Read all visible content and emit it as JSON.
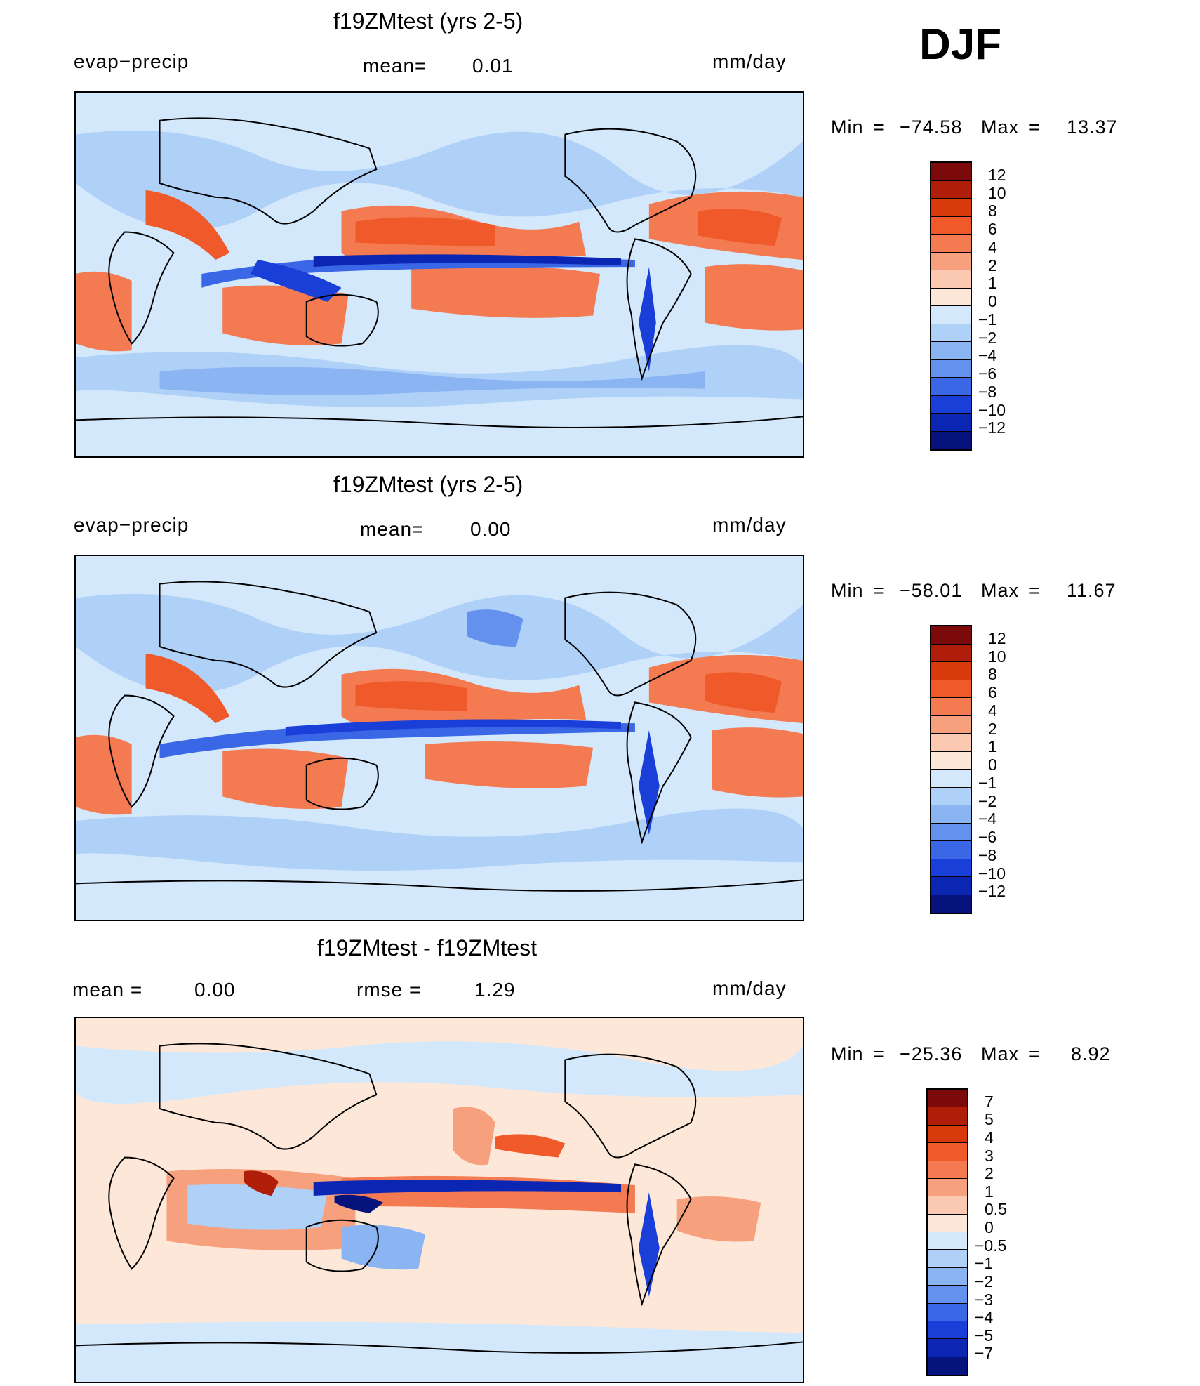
{
  "season": "DJF",
  "panels": [
    {
      "title": "f19ZMtest (yrs 2-5)",
      "left_label": "evap−precip",
      "center_key": "mean=",
      "center_val": "0.01",
      "units": "mm/day",
      "min_label": "Min",
      "min_val": "−74.58",
      "max_label": "Max",
      "max_val": "13.37",
      "levels": [
        "12",
        "10",
        "8",
        "6",
        "4",
        "2",
        "1",
        "0",
        "−1",
        "−2",
        "−4",
        "−6",
        "−8",
        "−10",
        "−12"
      ],
      "colors": [
        "#7d0a0a",
        "#b01e09",
        "#d83a0c",
        "#f0592a",
        "#f47a52",
        "#f7a07e",
        "#fbc9b1",
        "#fde7d8",
        "#d4e8fb",
        "#afd0f7",
        "#8bb5f2",
        "#6491ee",
        "#3a67e6",
        "#1a3fd8",
        "#0b26b3",
        "#07137d"
      ]
    },
    {
      "title": "f19ZMtest (yrs 2-5)",
      "left_label": "evap−precip",
      "center_key": "mean=",
      "center_val": "0.00",
      "units": "mm/day",
      "min_label": "Min",
      "min_val": "−58.01",
      "max_label": "Max",
      "max_val": "11.67",
      "levels": [
        "12",
        "10",
        "8",
        "6",
        "4",
        "2",
        "1",
        "0",
        "−1",
        "−2",
        "−4",
        "−6",
        "−8",
        "−10",
        "−12"
      ],
      "colors": [
        "#7d0a0a",
        "#b01e09",
        "#d83a0c",
        "#f0592a",
        "#f47a52",
        "#f7a07e",
        "#fbc9b1",
        "#fde7d8",
        "#d4e8fb",
        "#afd0f7",
        "#8bb5f2",
        "#6491ee",
        "#3a67e6",
        "#1a3fd8",
        "#0b26b3",
        "#07137d"
      ]
    },
    {
      "title": "f19ZMtest - f19ZMtest",
      "left_key": "mean =",
      "left_val": "0.00",
      "center_key": "rmse =",
      "center_val": "1.29",
      "units": "mm/day",
      "min_label": "Min",
      "min_val": "−25.36",
      "max_label": "Max",
      "max_val": "8.92",
      "levels": [
        "7",
        "5",
        "4",
        "3",
        "2",
        "1",
        "0.5",
        "0",
        "−0.5",
        "−1",
        "−2",
        "−3",
        "−4",
        "−5",
        "−7"
      ],
      "colors": [
        "#7d0a0a",
        "#b01e09",
        "#d83a0c",
        "#f0592a",
        "#f47a52",
        "#f7a07e",
        "#fbc9b1",
        "#fde7d8",
        "#d4e8fb",
        "#afd0f7",
        "#8bb5f2",
        "#6491ee",
        "#3a67e6",
        "#1a3fd8",
        "#0b26b3",
        "#07137d"
      ]
    }
  ]
}
